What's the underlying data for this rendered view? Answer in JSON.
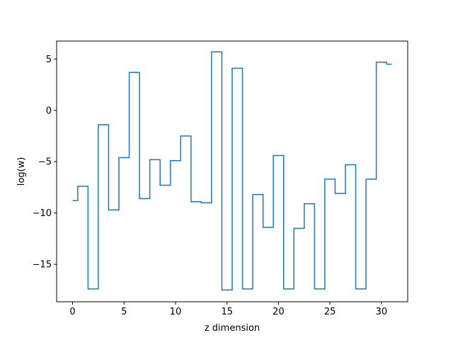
{
  "chart_data": {
    "type": "line",
    "drawstyle": "steps-mid",
    "title": "",
    "xlabel": "z dimension",
    "ylabel": "log(w)",
    "xlim": [
      -1.55,
      32.55
    ],
    "ylim": [
      -18.65,
      6.75
    ],
    "xticks": [
      0,
      5,
      10,
      15,
      20,
      25,
      30
    ],
    "yticks": [
      -15,
      -10,
      -5,
      0,
      5
    ],
    "grid": false,
    "series": [
      {
        "color": "#1f77b4",
        "x": [
          0,
          1,
          2,
          3,
          4,
          5,
          6,
          7,
          8,
          9,
          10,
          11,
          12,
          13,
          14,
          15,
          16,
          17,
          18,
          19,
          20,
          21,
          22,
          23,
          24,
          25,
          26,
          27,
          28,
          29,
          30,
          31
        ],
        "y": [
          -8.8,
          -7.4,
          -17.4,
          -1.4,
          -9.7,
          -4.6,
          3.7,
          -8.6,
          -4.8,
          -7.3,
          -4.9,
          -2.5,
          -8.9,
          -9.0,
          5.7,
          -17.5,
          4.1,
          -17.4,
          -8.2,
          -11.4,
          -4.4,
          -17.4,
          -11.5,
          -9.1,
          -17.4,
          -6.7,
          -8.1,
          -5.3,
          -17.4,
          -6.7,
          4.7,
          4.5
        ]
      }
    ]
  }
}
